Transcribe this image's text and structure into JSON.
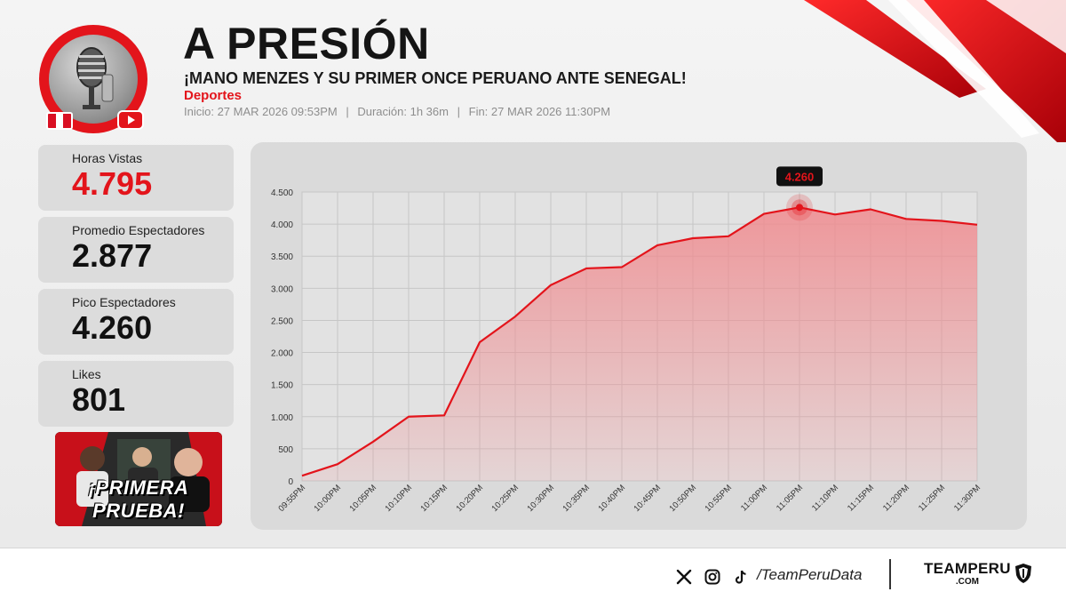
{
  "header": {
    "title": "A PRESIÓN",
    "subtitle": "¡MANO MENZES Y SU PRIMER ONCE PERUANO ANTE SENEGAL!",
    "category": "Deportes",
    "meta": {
      "start": "Inicio: 27 MAR 2026 09:53PM",
      "duration": "Duración: 1h 36m",
      "end": "Fin: 27 MAR 2026 11:30PM",
      "separator": "|"
    }
  },
  "colors": {
    "accent": "#e3141b",
    "flag_red": "#d91023",
    "flag_white": "#ffffff",
    "chart_line": "#e3141b",
    "chart_fill": "#f08a8e"
  },
  "icons": {
    "logo": "microphone-icon",
    "flag": "peru-flag-icon",
    "youtube": "youtube-icon",
    "x": "x-icon",
    "instagram": "instagram-icon",
    "tiktok": "tiktok-icon",
    "shield": "shield-icon"
  },
  "stats": [
    {
      "label": "Horas Vistas",
      "value": "4.795",
      "highlight": true
    },
    {
      "label": "Promedio Espectadores",
      "value": "2.877",
      "highlight": false
    },
    {
      "label": "Pico Espectadores",
      "value": "4.260",
      "highlight": false
    },
    {
      "label": "Likes",
      "value": "801",
      "highlight": false
    }
  ],
  "thumbnail": {
    "text": "¡PRIMERA PRUEBA!"
  },
  "chart_data": {
    "type": "area",
    "title": "",
    "xlabel": "",
    "ylabel": "",
    "x": [
      "09:55PM",
      "10:00PM",
      "10:05PM",
      "10:10PM",
      "10:15PM",
      "10:20PM",
      "10:25PM",
      "10:30PM",
      "10:35PM",
      "10:40PM",
      "10:45PM",
      "10:50PM",
      "10:55PM",
      "11:00PM",
      "11:05PM",
      "11:10PM",
      "11:15PM",
      "11:20PM",
      "11:25PM",
      "11:30PM"
    ],
    "values": [
      80,
      260,
      610,
      1000,
      1020,
      2160,
      2560,
      3050,
      3310,
      3330,
      3670,
      3780,
      3810,
      4160,
      4260,
      4150,
      4230,
      4080,
      4050,
      3990
    ],
    "ylim": [
      0,
      4500
    ],
    "yticks": [
      0,
      500,
      1000,
      1500,
      2000,
      2500,
      3000,
      3500,
      4000,
      4500
    ],
    "ytick_labels": [
      "0",
      "500",
      "1.000",
      "1.500",
      "2.000",
      "2.500",
      "3.000",
      "3.500",
      "4.000",
      "4.500"
    ],
    "grid": true,
    "peak": {
      "x": "11:05PM",
      "value": 4260,
      "label": "4.260"
    }
  },
  "footer": {
    "handle": "/TeamPeruData",
    "brand": "TEAMPERU",
    "brand_sub": ".COM"
  }
}
